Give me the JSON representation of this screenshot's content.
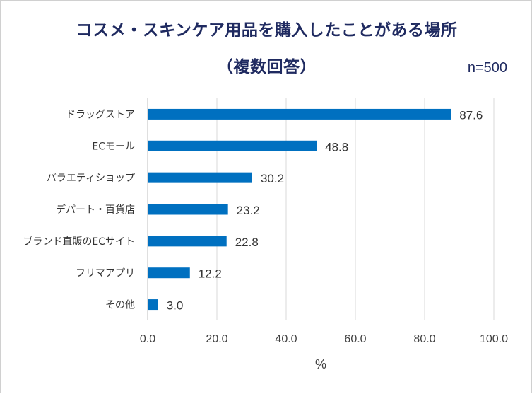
{
  "chart_data": {
    "type": "bar",
    "orientation": "horizontal",
    "title": "コスメ・スキンケア用品を購入したことがある場所",
    "subtitle": "（複数回答）",
    "sample_size": "n=500",
    "categories": [
      "ドラッグストア",
      "ECモール",
      "バラエティショップ",
      "デパート・百貨店",
      "ブランド直販のECサイト",
      "フリマアプリ",
      "その他"
    ],
    "values": [
      87.6,
      48.8,
      30.2,
      23.2,
      22.8,
      12.2,
      3.0
    ],
    "value_labels": [
      "87.6",
      "48.8",
      "30.2",
      "23.2",
      "22.8",
      "12.2",
      "3.0"
    ],
    "xlabel": "%",
    "xlim": [
      0,
      100
    ],
    "xticks": [
      "0.0",
      "20.0",
      "40.0",
      "60.0",
      "80.0",
      "100.0"
    ],
    "grid": "vertical",
    "bar_color": "#0070c0",
    "title_color": "#1f2a60"
  }
}
